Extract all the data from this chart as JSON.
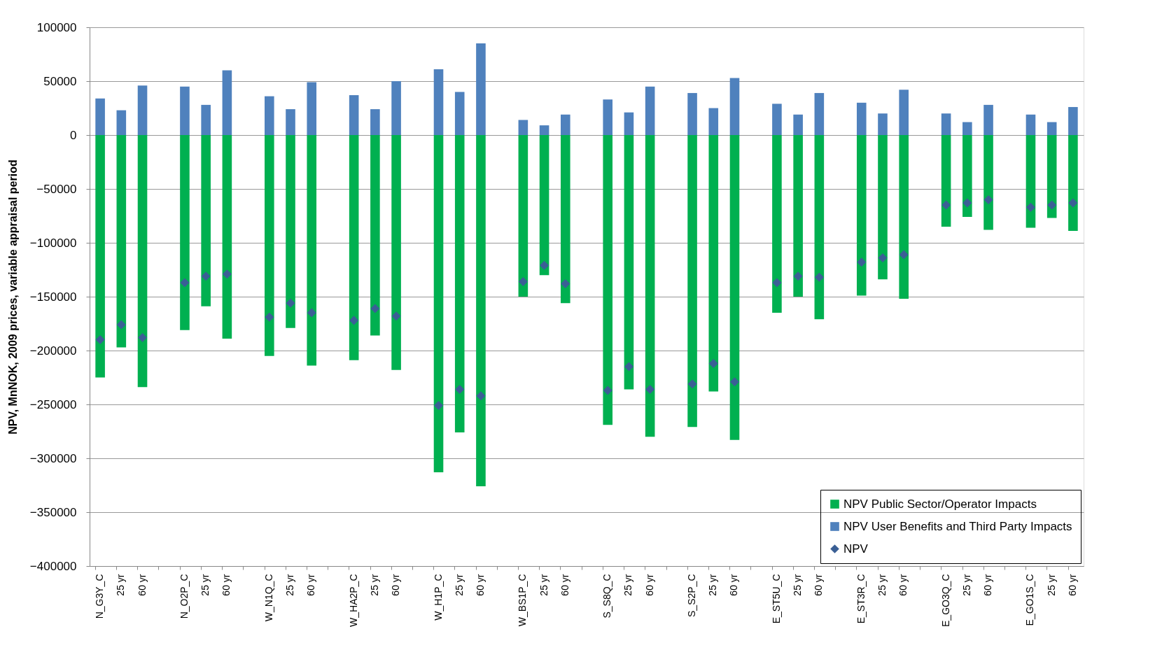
{
  "chart_data": {
    "type": "bar",
    "stacked": true,
    "ylabel": "NPV, MnNOK, 2009 prices, variable appraisal  period",
    "categories": [
      "N_G3Y_C",
      "25 yr",
      "60 yr",
      null,
      "N_O2P_C",
      "25 yr",
      "60 yr",
      null,
      "W_N1Q_C",
      "25 yr",
      "60 yr",
      null,
      "W_HA2P_C",
      "25 yr",
      "60 yr",
      null,
      "W_H1P_C",
      "25 yr",
      "60 yr",
      null,
      "W_BS1P_C",
      "25 yr",
      "60 yr",
      null,
      "S_S8Q_C",
      "25 yr",
      "60 yr",
      null,
      "S_S2P_C",
      "25 yr",
      "60 yr",
      null,
      "E_ST5U_C",
      "25 yr",
      "60 yr",
      null,
      "E_ST3R_C",
      "25 yr",
      "60 yr",
      null,
      "E_GO3Q_C",
      "25 yr",
      "60 yr",
      null,
      "E_GO1S_C",
      "25 yr",
      "60 yr"
    ],
    "series": [
      {
        "name": "NPV Public Sector/Operator Impacts",
        "color": "#00b050",
        "values": [
          -225000,
          -197000,
          -234000,
          null,
          -181000,
          -159000,
          -189000,
          null,
          -205000,
          -179000,
          -214000,
          null,
          -209000,
          -186000,
          -218000,
          null,
          -313000,
          -276000,
          -326000,
          null,
          -150000,
          -130000,
          -156000,
          null,
          -269000,
          -236000,
          -280000,
          null,
          -271000,
          -238000,
          -283000,
          null,
          -165000,
          -150000,
          -171000,
          null,
          -149000,
          -134000,
          -152000,
          null,
          -85000,
          -76000,
          -88000,
          null,
          -86000,
          -77000,
          -89000
        ]
      },
      {
        "name": "NPV User Benefits and Third Party Impacts",
        "color": "#4f81bd",
        "values": [
          34000,
          23000,
          46000,
          null,
          45000,
          28000,
          60000,
          null,
          36000,
          24000,
          49000,
          null,
          37000,
          24000,
          50000,
          null,
          61000,
          40000,
          85000,
          null,
          14000,
          9000,
          19000,
          null,
          33000,
          21000,
          45000,
          null,
          39000,
          25000,
          53000,
          null,
          29000,
          19000,
          39000,
          null,
          30000,
          20000,
          42000,
          null,
          20000,
          12000,
          28000,
          null,
          19000,
          12000,
          26000
        ]
      },
      {
        "name": "NPV",
        "type": "scatter",
        "color": "#3a5f95",
        "values": [
          -190000,
          -176000,
          -188000,
          null,
          -137000,
          -131000,
          -129000,
          null,
          -169000,
          -156000,
          -165000,
          null,
          -172000,
          -161000,
          -168000,
          null,
          -251000,
          -236000,
          -242000,
          null,
          -136000,
          -121000,
          -138000,
          null,
          -237000,
          -215000,
          -236000,
          null,
          -231000,
          -212000,
          -229000,
          null,
          -137000,
          -131000,
          -132000,
          null,
          -118000,
          -114000,
          -111000,
          null,
          -65000,
          -63000,
          -60000,
          null,
          -67000,
          -65000,
          -63000
        ]
      }
    ],
    "marker": "diamond",
    "ylim": [
      -400000,
      100000
    ],
    "yticks": [
      -400000,
      -350000,
      -300000,
      -250000,
      -200000,
      -150000,
      -100000,
      -50000,
      0,
      50000,
      100000
    ],
    "grid": "y",
    "legend": "bottom right"
  }
}
